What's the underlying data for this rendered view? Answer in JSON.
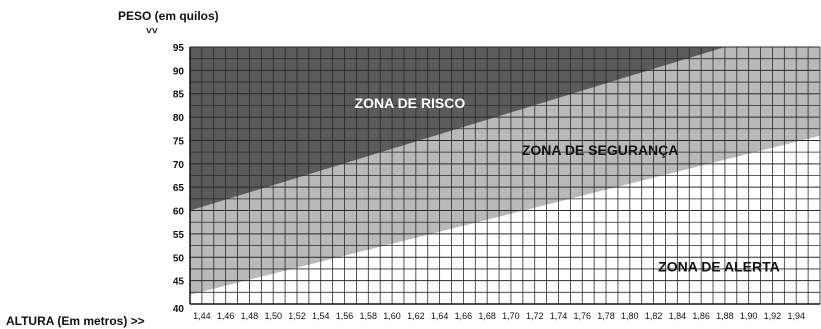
{
  "chart_data": {
    "type": "area",
    "ylabel": "PESO (em quilos)",
    "xlabel": "ALTURA (Em metros) >>",
    "ylabel_arrows": "˅˅",
    "y_ticks": [
      40,
      45,
      50,
      55,
      60,
      65,
      70,
      75,
      80,
      85,
      90,
      95
    ],
    "x_ticks": [
      "1,44",
      "1,46",
      "1,48",
      "1,50",
      "1,52",
      "1,54",
      "1,56",
      "1,58",
      "1,60",
      "1,62",
      "1,64",
      "1,66",
      "1,68",
      "1,70",
      "1,72",
      "1,74",
      "1,76",
      "1,78",
      "1,80",
      "1,82",
      "1,84",
      "1,86",
      "1,88",
      "1,90",
      "1,92",
      "1,94"
    ],
    "xlim": [
      1.43,
      1.96
    ],
    "ylim": [
      40,
      95
    ],
    "grid": true,
    "boundaries": [
      {
        "x": [
          1.43,
          1.96
        ],
        "y": [
          42,
          76
        ]
      },
      {
        "x": [
          1.43,
          1.88
        ],
        "y": [
          60,
          95
        ]
      }
    ],
    "zones": [
      {
        "label": "ZONA DE RISCO",
        "color": "#5b5b5b",
        "label_x": 1.615,
        "label_y": 83
      },
      {
        "label": "ZONA DE SEGURANÇA",
        "color": "#b9b9b9",
        "label_x": 1.775,
        "label_y": 73
      },
      {
        "label": "ZONA DE ALERTA",
        "color": "#ffffff",
        "label_x": 1.875,
        "label_y": 48
      }
    ],
    "grid_color": "#2a2a2a"
  }
}
